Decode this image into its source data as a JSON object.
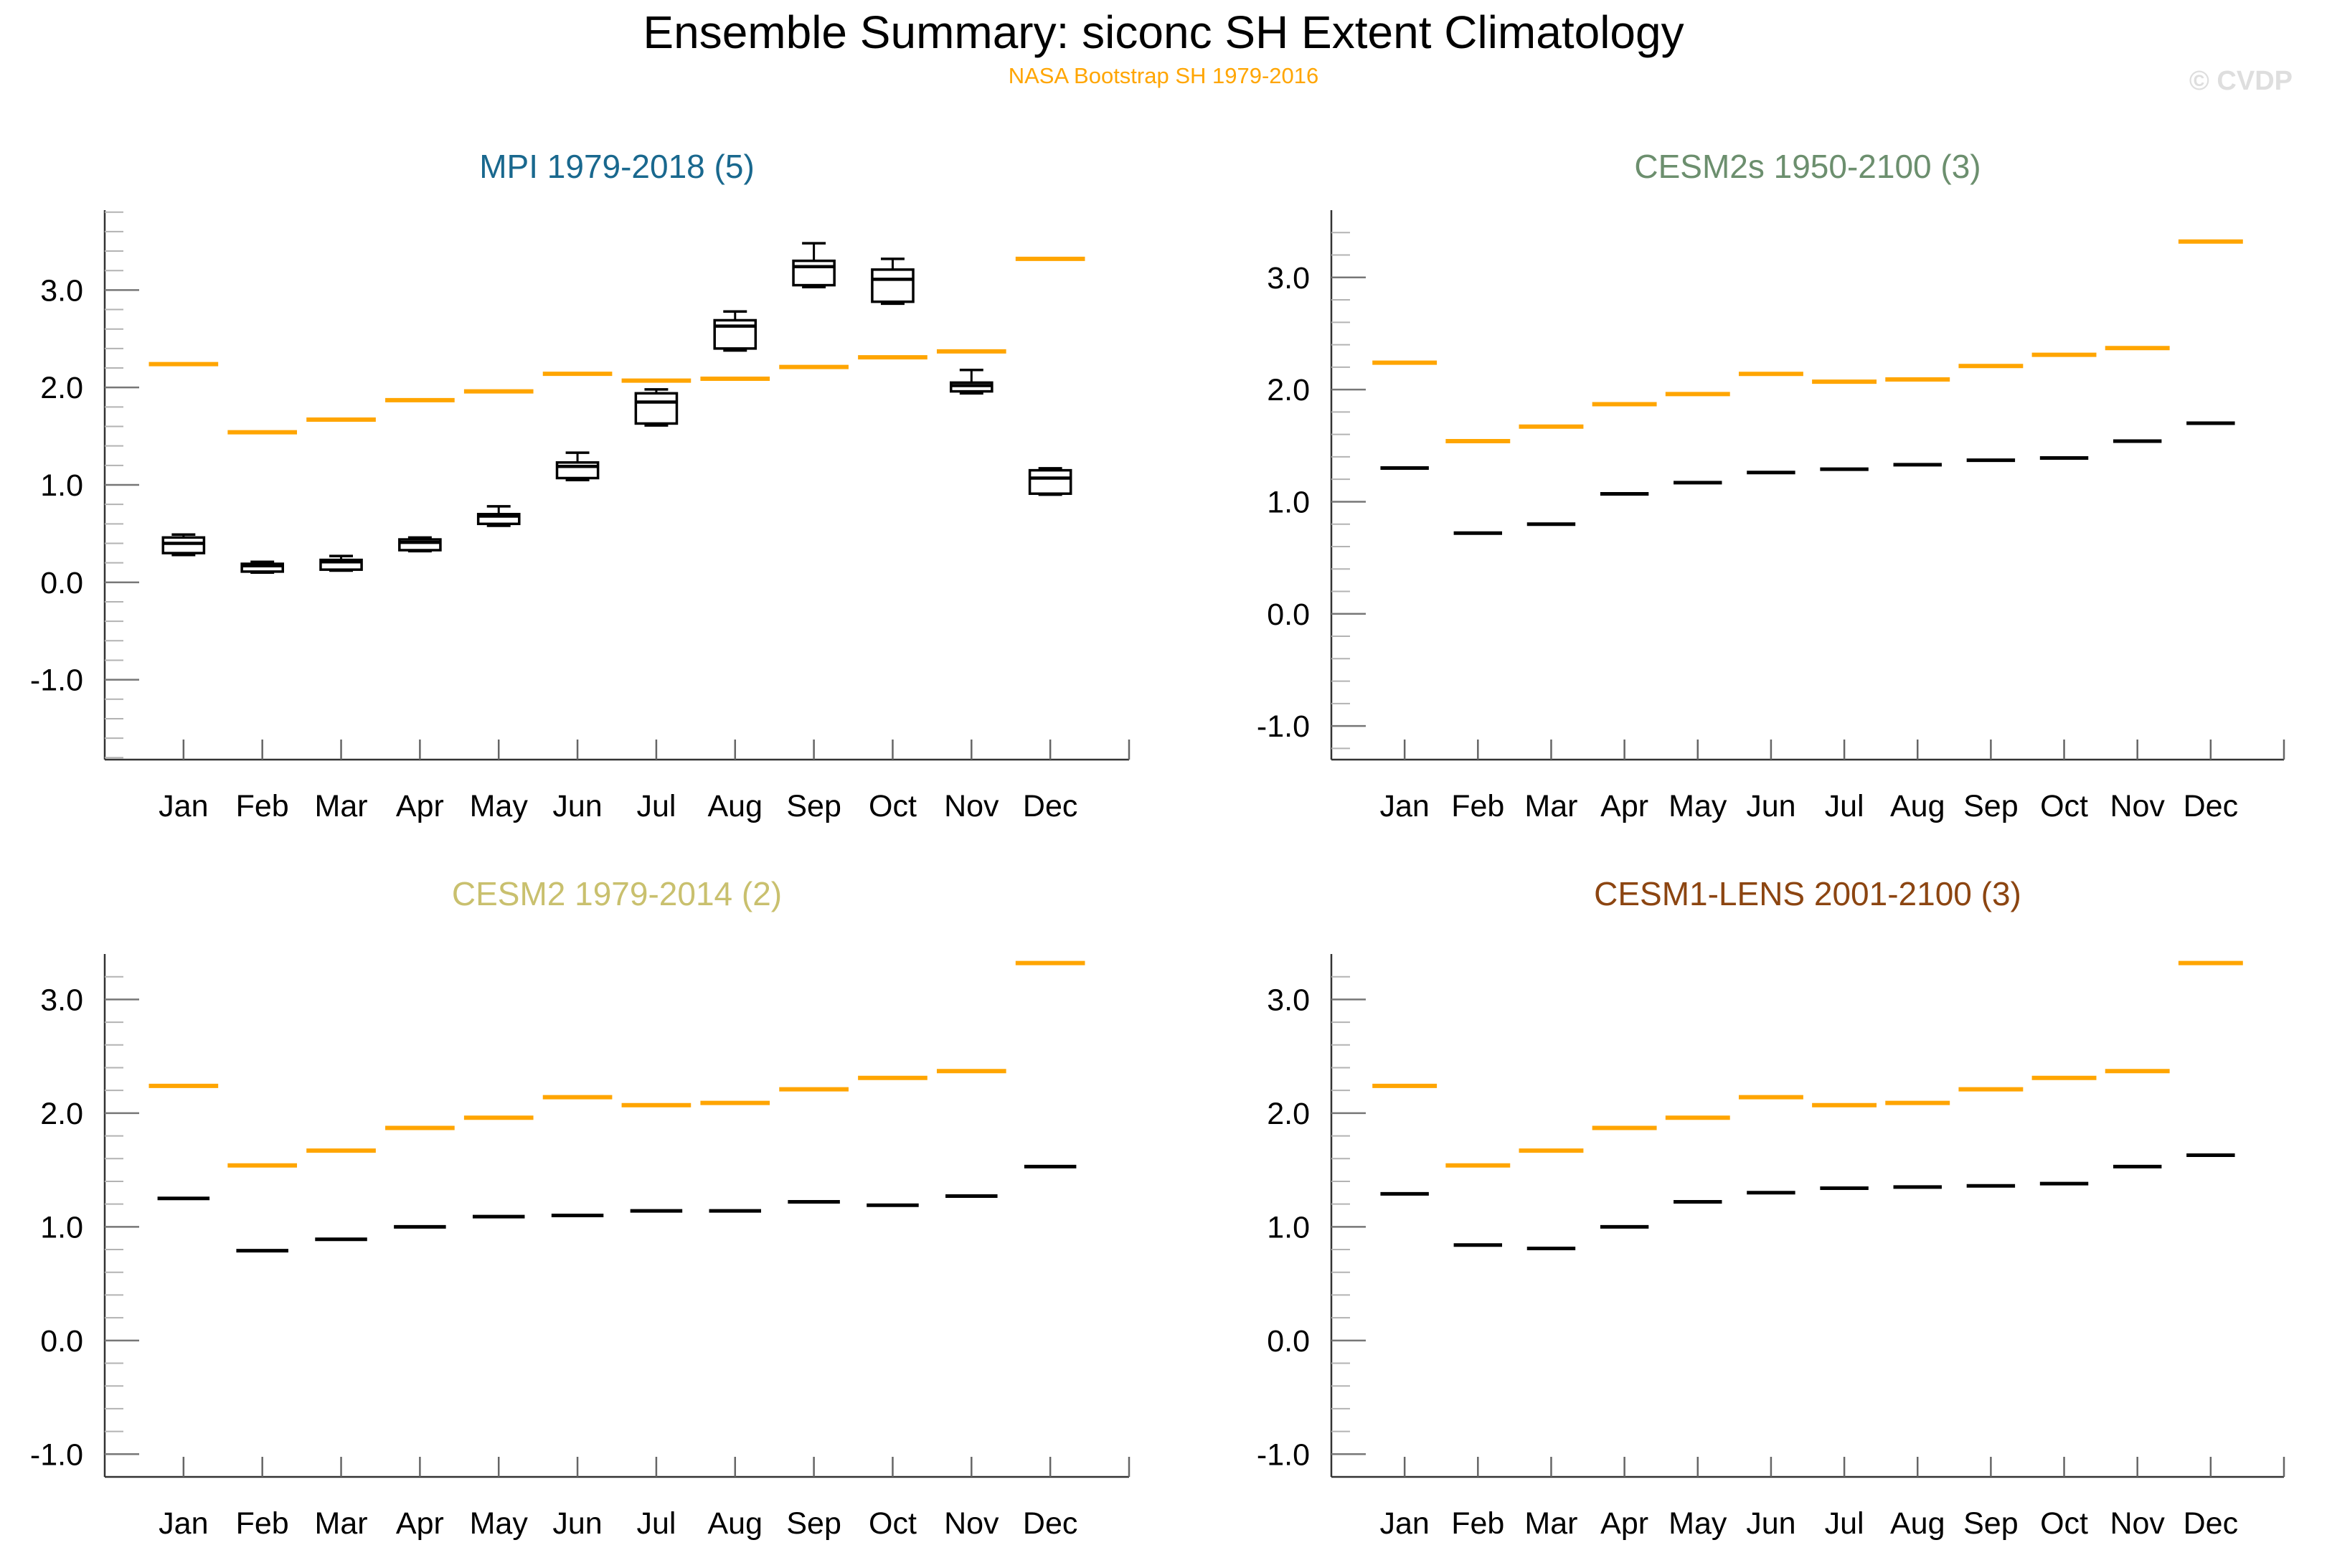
{
  "header": {
    "title": "Ensemble Summary: siconc SH Extent Climatology",
    "subtitle": "NASA Bootstrap SH 1979-2016",
    "copyright": "© CVDP"
  },
  "chart_data": {
    "type": "bar",
    "note": "box-and-whisker + horizontal dash climatology chart, 4 panels, monthly x-axis",
    "months": [
      "Jan",
      "Feb",
      "Mar",
      "Apr",
      "May",
      "Jun",
      "Jul",
      "Aug",
      "Sep",
      "Oct",
      "Nov",
      "Dec"
    ],
    "ytick_labels": [
      "3.0",
      "2.0",
      "1.0",
      "0.0",
      "-1.0"
    ],
    "ytick_values": [
      3.0,
      2.0,
      1.0,
      0.0,
      -1.0
    ],
    "minor_tick_step": 0.2,
    "grid": "off",
    "colors": {
      "observation": "#FFA500",
      "model": "#000000",
      "axis": "#333333",
      "major_tick": "#777777",
      "minor_tick": "#b3b3b3",
      "xtick": "#666666"
    },
    "observation": {
      "name": "NASA Bootstrap SH 1979-2016",
      "values": [
        2.24,
        1.54,
        1.67,
        1.87,
        1.96,
        2.14,
        2.07,
        2.09,
        2.21,
        2.31,
        2.37,
        3.32
      ]
    },
    "panels": [
      {
        "id": "mpi",
        "title": "MPI 1979-2018 (5)",
        "title_color": "#19688E",
        "kind": "box",
        "ylim": [
          -1.82,
          3.82
        ],
        "boxes": [
          {
            "month": "Jan",
            "low": 0.28,
            "q1": 0.3,
            "median": 0.4,
            "q3": 0.46,
            "high": 0.49
          },
          {
            "month": "Feb",
            "low": 0.1,
            "q1": 0.11,
            "median": 0.17,
            "q3": 0.19,
            "high": 0.21
          },
          {
            "month": "Mar",
            "low": 0.12,
            "q1": 0.13,
            "median": 0.21,
            "q3": 0.23,
            "high": 0.27
          },
          {
            "month": "Apr",
            "low": 0.32,
            "q1": 0.33,
            "median": 0.41,
            "q3": 0.44,
            "high": 0.46
          },
          {
            "month": "May",
            "low": 0.58,
            "q1": 0.6,
            "median": 0.68,
            "q3": 0.7,
            "high": 0.78
          },
          {
            "month": "Jun",
            "low": 1.05,
            "q1": 1.07,
            "median": 1.19,
            "q3": 1.23,
            "high": 1.33
          },
          {
            "month": "Jul",
            "low": 1.61,
            "q1": 1.63,
            "median": 1.85,
            "q3": 1.94,
            "high": 1.98
          },
          {
            "month": "Aug",
            "low": 2.38,
            "q1": 2.4,
            "median": 2.63,
            "q3": 2.69,
            "high": 2.78
          },
          {
            "month": "Sep",
            "low": 3.03,
            "q1": 3.05,
            "median": 3.24,
            "q3": 3.3,
            "high": 3.48
          },
          {
            "month": "Oct",
            "low": 2.86,
            "q1": 2.88,
            "median": 3.11,
            "q3": 3.21,
            "high": 3.32
          },
          {
            "month": "Nov",
            "low": 1.94,
            "q1": 1.96,
            "median": 2.02,
            "q3": 2.05,
            "high": 2.18
          },
          {
            "month": "Dec",
            "low": 0.9,
            "q1": 0.91,
            "median": 1.07,
            "q3": 1.15,
            "high": 1.17
          }
        ]
      },
      {
        "id": "cesm2s",
        "title": "CESM2s 1950-2100 (3)",
        "title_color": "#6C8F6E",
        "kind": "line",
        "ylim": [
          -1.3,
          3.6
        ],
        "values": [
          1.3,
          0.72,
          0.8,
          1.07,
          1.17,
          1.26,
          1.29,
          1.33,
          1.37,
          1.39,
          1.54,
          1.7
        ]
      },
      {
        "id": "cesm2",
        "title": "CESM2 1979-2014 (2)",
        "title_color": "#C9C06E",
        "kind": "line",
        "ylim": [
          -1.2,
          3.4
        ],
        "values": [
          1.25,
          0.79,
          0.89,
          1.0,
          1.09,
          1.1,
          1.14,
          1.14,
          1.22,
          1.19,
          1.27,
          1.53
        ]
      },
      {
        "id": "cesm1-lens",
        "title": "CESM1-LENS 2001-2100 (3)",
        "title_color": "#8C4511",
        "kind": "line",
        "ylim": [
          -1.2,
          3.4
        ],
        "values": [
          1.29,
          0.84,
          0.81,
          1.0,
          1.22,
          1.3,
          1.34,
          1.35,
          1.36,
          1.38,
          1.53,
          1.63
        ]
      }
    ]
  }
}
